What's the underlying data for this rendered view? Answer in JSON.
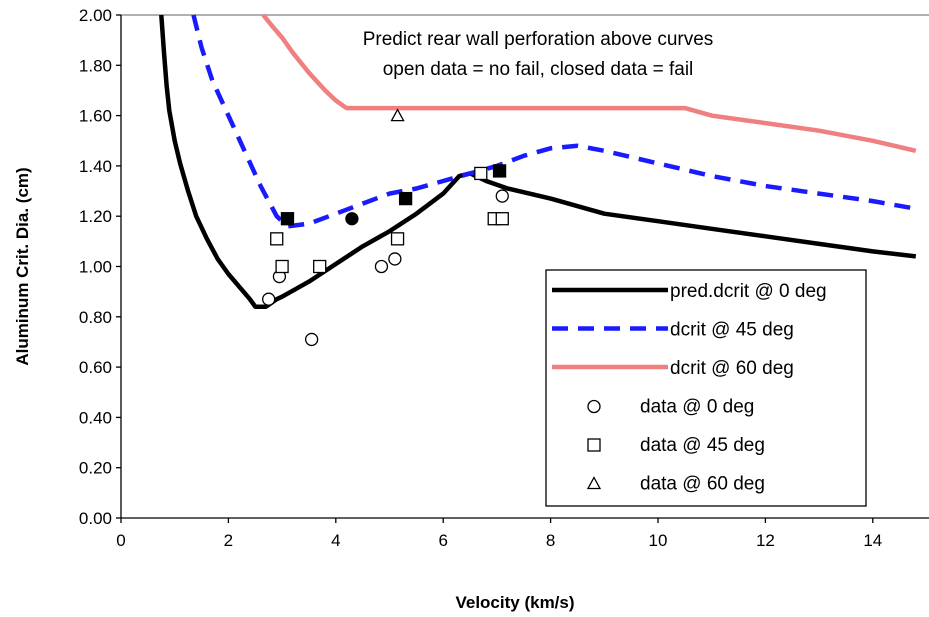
{
  "chart_data": {
    "type": "line",
    "title": "",
    "xlabel": "Velocity (km/s)",
    "ylabel": "Aluminum Crit. Dia. (cm)",
    "xlim": [
      0,
      14.8
    ],
    "ylim": [
      0,
      2.0
    ],
    "x_ticks": [
      "0",
      "2",
      "4",
      "6",
      "8",
      "10",
      "12",
      "14"
    ],
    "y_ticks": [
      "0.00",
      "0.20",
      "0.40",
      "0.60",
      "0.80",
      "1.00",
      "1.20",
      "1.40",
      "1.60",
      "1.80",
      "2.00"
    ],
    "gridlines": "horizontal at 2.00 only",
    "annotations": [
      "Predict rear wall perforation above curves",
      "open data = no fail, closed data = fail"
    ],
    "legend_position": "lower-right",
    "series": [
      {
        "name": "pred.dcrit @ 0 deg",
        "style": "solid",
        "color": "#000000",
        "points": [
          [
            0.75,
            2.0
          ],
          [
            0.8,
            1.85
          ],
          [
            0.85,
            1.72
          ],
          [
            0.9,
            1.62
          ],
          [
            1.0,
            1.5
          ],
          [
            1.1,
            1.41
          ],
          [
            1.25,
            1.3
          ],
          [
            1.4,
            1.2
          ],
          [
            1.6,
            1.11
          ],
          [
            1.8,
            1.03
          ],
          [
            2.0,
            0.97
          ],
          [
            2.2,
            0.92
          ],
          [
            2.4,
            0.87
          ],
          [
            2.5,
            0.84
          ],
          [
            2.7,
            0.84
          ],
          [
            2.9,
            0.87
          ],
          [
            3.0,
            0.88
          ],
          [
            3.5,
            0.94
          ],
          [
            4.0,
            1.01
          ],
          [
            4.5,
            1.08
          ],
          [
            5.0,
            1.14
          ],
          [
            5.5,
            1.21
          ],
          [
            6.0,
            1.29
          ],
          [
            6.3,
            1.36
          ],
          [
            6.5,
            1.37
          ],
          [
            6.8,
            1.34
          ],
          [
            7.2,
            1.31
          ],
          [
            8.0,
            1.27
          ],
          [
            9.0,
            1.21
          ],
          [
            10.0,
            1.18
          ],
          [
            11.0,
            1.15
          ],
          [
            12.0,
            1.12
          ],
          [
            13.0,
            1.09
          ],
          [
            14.0,
            1.06
          ],
          [
            14.8,
            1.04
          ]
        ]
      },
      {
        "name": "dcrit @ 45 deg",
        "style": "dashed",
        "color": "#1a1aff",
        "points": [
          [
            1.35,
            2.0
          ],
          [
            1.5,
            1.87
          ],
          [
            1.7,
            1.74
          ],
          [
            2.0,
            1.6
          ],
          [
            2.3,
            1.46
          ],
          [
            2.6,
            1.32
          ],
          [
            2.9,
            1.2
          ],
          [
            3.1,
            1.16
          ],
          [
            3.5,
            1.17
          ],
          [
            4.0,
            1.21
          ],
          [
            4.5,
            1.25
          ],
          [
            5.0,
            1.29
          ],
          [
            5.5,
            1.31
          ],
          [
            6.0,
            1.34
          ],
          [
            6.5,
            1.37
          ],
          [
            7.0,
            1.4
          ],
          [
            7.5,
            1.44
          ],
          [
            8.0,
            1.47
          ],
          [
            8.5,
            1.48
          ],
          [
            9.0,
            1.46
          ],
          [
            10.0,
            1.41
          ],
          [
            11.0,
            1.36
          ],
          [
            12.0,
            1.32
          ],
          [
            13.0,
            1.29
          ],
          [
            14.0,
            1.26
          ],
          [
            14.8,
            1.23
          ]
        ]
      },
      {
        "name": "dcrit @ 60 deg",
        "style": "solid",
        "color": "#f08080",
        "points": [
          [
            2.65,
            2.0
          ],
          [
            2.8,
            1.96
          ],
          [
            3.0,
            1.91
          ],
          [
            3.2,
            1.85
          ],
          [
            3.5,
            1.77
          ],
          [
            3.8,
            1.7
          ],
          [
            4.0,
            1.66
          ],
          [
            4.2,
            1.63
          ],
          [
            4.5,
            1.63
          ],
          [
            5.0,
            1.63
          ],
          [
            10.5,
            1.63
          ],
          [
            11.0,
            1.6
          ],
          [
            12.0,
            1.57
          ],
          [
            13.0,
            1.54
          ],
          [
            14.0,
            1.5
          ],
          [
            14.8,
            1.46
          ]
        ]
      },
      {
        "name": "data @ 0 deg",
        "marker": "circle",
        "points": [
          {
            "x": 2.75,
            "y": 0.87,
            "fill": false
          },
          {
            "x": 2.95,
            "y": 0.96,
            "fill": false
          },
          {
            "x": 3.55,
            "y": 0.71,
            "fill": false
          },
          {
            "x": 4.3,
            "y": 1.19,
            "fill": true
          },
          {
            "x": 4.85,
            "y": 1.0,
            "fill": false
          },
          {
            "x": 5.1,
            "y": 1.03,
            "fill": false
          },
          {
            "x": 7.1,
            "y": 1.28,
            "fill": false
          }
        ]
      },
      {
        "name": "data @ 45 deg",
        "marker": "square",
        "points": [
          {
            "x": 2.9,
            "y": 1.11,
            "fill": false
          },
          {
            "x": 3.0,
            "y": 1.0,
            "fill": false
          },
          {
            "x": 3.1,
            "y": 1.19,
            "fill": true
          },
          {
            "x": 3.7,
            "y": 1.0,
            "fill": false
          },
          {
            "x": 5.15,
            "y": 1.11,
            "fill": false
          },
          {
            "x": 5.3,
            "y": 1.27,
            "fill": true
          },
          {
            "x": 6.7,
            "y": 1.37,
            "fill": false
          },
          {
            "x": 6.95,
            "y": 1.19,
            "fill": false
          },
          {
            "x": 7.1,
            "y": 1.19,
            "fill": false
          },
          {
            "x": 7.05,
            "y": 1.38,
            "fill": true
          }
        ]
      },
      {
        "name": "data @ 60 deg",
        "marker": "triangle",
        "points": [
          {
            "x": 5.15,
            "y": 1.6,
            "fill": false
          }
        ]
      }
    ]
  }
}
